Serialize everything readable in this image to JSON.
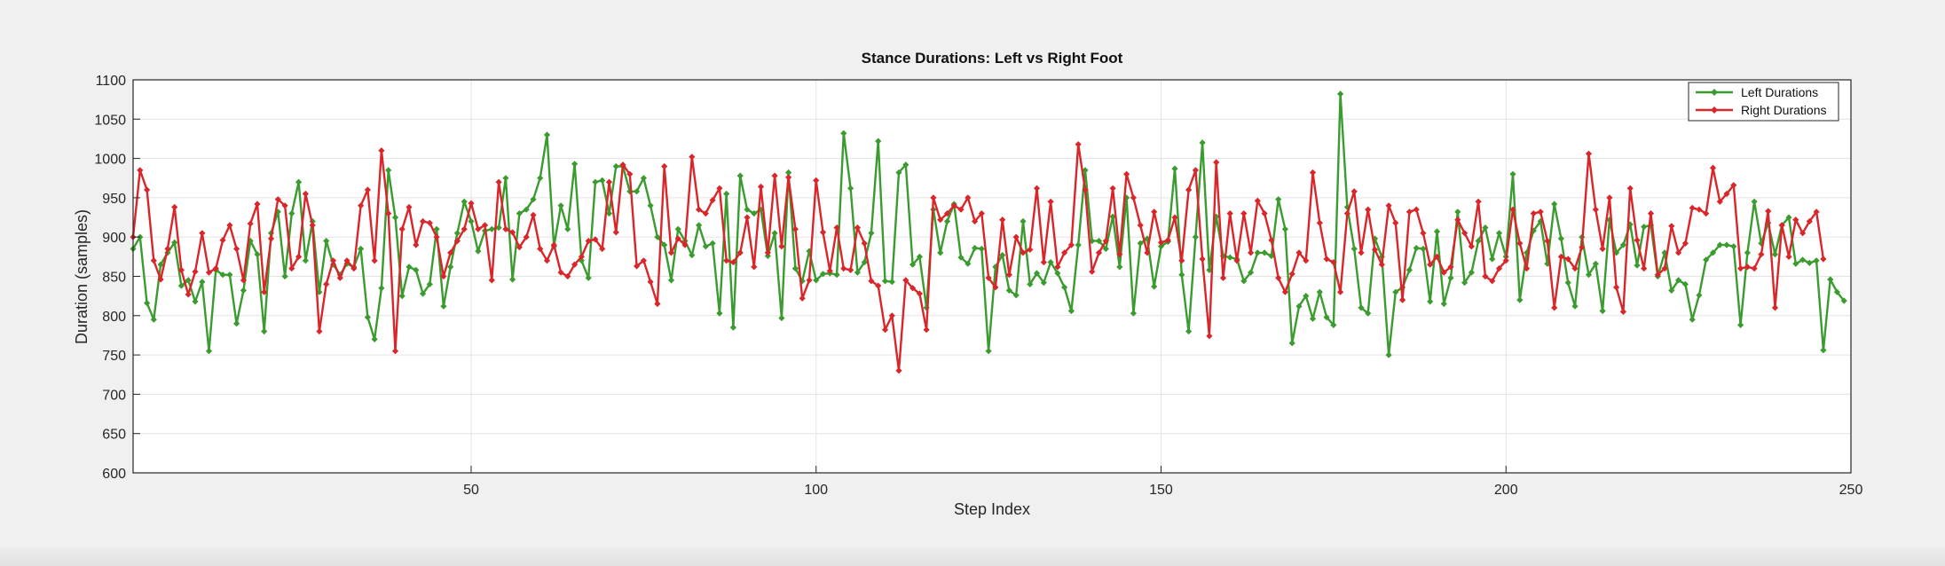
{
  "colors": {
    "left": "#3a9b2e",
    "right": "#d9262a",
    "axes_bg": "#ffffff",
    "figure_bg": "#f0f0f0",
    "grid": "#e3e3e3",
    "axis": "#262626"
  },
  "chart_data": {
    "type": "line",
    "title": "Stance Durations: Left vs Right Foot",
    "xlabel": "Step Index",
    "ylabel": "Duration (samples)",
    "xlim": [
      1,
      250
    ],
    "ylim": [
      600,
      1100
    ],
    "xticks": [
      50,
      100,
      150,
      200,
      250
    ],
    "yticks": [
      600,
      650,
      700,
      750,
      800,
      850,
      900,
      950,
      1000,
      1050,
      1100
    ],
    "grid": true,
    "legend_position": "top-right",
    "series": [
      {
        "name": "Left Durations",
        "color": "#3a9b2e",
        "marker": "diamond",
        "values": [
          885,
          900,
          816,
          795,
          865,
          880,
          893,
          838,
          845,
          818,
          843,
          755,
          858,
          852,
          852,
          790,
          832,
          895,
          878,
          780,
          905,
          932,
          850,
          930,
          970,
          870,
          920,
          830,
          895,
          865,
          852,
          866,
          862,
          885,
          798,
          770,
          835,
          985,
          925,
          825,
          862,
          858,
          828,
          840,
          910,
          812,
          862,
          905,
          945,
          920,
          882,
          908,
          910,
          912,
          975,
          846,
          930,
          935,
          948,
          975,
          1030,
          888,
          940,
          910,
          993,
          870,
          848,
          970,
          972,
          930,
          990,
          990,
          958,
          958,
          975,
          940,
          900,
          890,
          845,
          910,
          895,
          877,
          915,
          888,
          892,
          803,
          955,
          785,
          978,
          935,
          930,
          935,
          876,
          905,
          797,
          982,
          860,
          844,
          882,
          845,
          853,
          854,
          852,
          1032,
          962,
          855,
          868,
          905,
          1022,
          844,
          843,
          982,
          992,
          865,
          875,
          810,
          935,
          880,
          920,
          942,
          874,
          866,
          886,
          885,
          755,
          862,
          877,
          832,
          826,
          920,
          840,
          854,
          842,
          868,
          854,
          836,
          806,
          890,
          985,
          895,
          895,
          885,
          926,
          862,
          950,
          803,
          892,
          898,
          837,
          888,
          894,
          987,
          852,
          780,
          900,
          1020,
          858,
          926,
          876,
          874,
          872,
          844,
          855,
          880,
          880,
          876,
          948,
          910,
          765,
          812,
          825,
          796,
          830,
          798,
          788,
          1082,
          938,
          885,
          810,
          803,
          898,
          875,
          750,
          830,
          836,
          858,
          886,
          885,
          818,
          907,
          815,
          848,
          932,
          842,
          855,
          895,
          912,
          872,
          905,
          875,
          980,
          820,
          880,
          908,
          920,
          866,
          942,
          898,
          842,
          812,
          900,
          852,
          866,
          806,
          922,
          880,
          890,
          916,
          864,
          913,
          915,
          850,
          880,
          832,
          845,
          840,
          795,
          826,
          871,
          880,
          890,
          890,
          888,
          788,
          880,
          945,
          892,
          918,
          878,
          915,
          925,
          866,
          871,
          867,
          870,
          756,
          846,
          830,
          819
        ]
      },
      {
        "name": "Right Durations",
        "color": "#d9262a",
        "marker": "diamond",
        "values": [
          900,
          985,
          960,
          870,
          846,
          885,
          938,
          858,
          827,
          856,
          905,
          855,
          860,
          896,
          915,
          885,
          845,
          917,
          942,
          830,
          898,
          948,
          940,
          860,
          875,
          955,
          915,
          780,
          840,
          870,
          848,
          870,
          860,
          940,
          960,
          870,
          1010,
          930,
          755,
          910,
          938,
          890,
          920,
          918,
          900,
          850,
          880,
          895,
          910,
          943,
          910,
          915,
          845,
          970,
          910,
          906,
          887,
          900,
          928,
          885,
          870,
          890,
          855,
          850,
          865,
          875,
          895,
          897,
          885,
          970,
          906,
          992,
          980,
          863,
          870,
          843,
          815,
          990,
          880,
          898,
          890,
          1002,
          935,
          930,
          947,
          962,
          870,
          868,
          880,
          925,
          862,
          964,
          880,
          978,
          888,
          976,
          910,
          822,
          845,
          972,
          906,
          857,
          912,
          860,
          858,
          912,
          892,
          844,
          838,
          782,
          800,
          730,
          845,
          835,
          828,
          782,
          950,
          922,
          930,
          940,
          935,
          950,
          920,
          930,
          848,
          836,
          922,
          852,
          900,
          880,
          884,
          962,
          868,
          945,
          862,
          880,
          890,
          1018,
          960,
          856,
          880,
          895,
          962,
          878,
          980,
          950,
          915,
          880,
          932,
          893,
          896,
          925,
          870,
          960,
          985,
          872,
          774,
          995,
          848,
          930,
          870,
          930,
          880,
          946,
          930,
          896,
          848,
          830,
          853,
          880,
          870,
          982,
          918,
          872,
          868,
          830,
          930,
          958,
          880,
          935,
          884,
          865,
          940,
          918,
          820,
          932,
          935,
          905,
          865,
          875,
          855,
          862,
          922,
          905,
          888,
          945,
          850,
          844,
          860,
          870,
          935,
          892,
          860,
          930,
          932,
          895,
          810,
          875,
          872,
          860,
          887,
          1006,
          935,
          885,
          950,
          836,
          805,
          962,
          896,
          860,
          930,
          852,
          860,
          914,
          880,
          892,
          937,
          935,
          930,
          988,
          945,
          955,
          966,
          860,
          862,
          860,
          878,
          933,
          810,
          915,
          875,
          922,
          905,
          920,
          932,
          872
        ]
      }
    ]
  }
}
